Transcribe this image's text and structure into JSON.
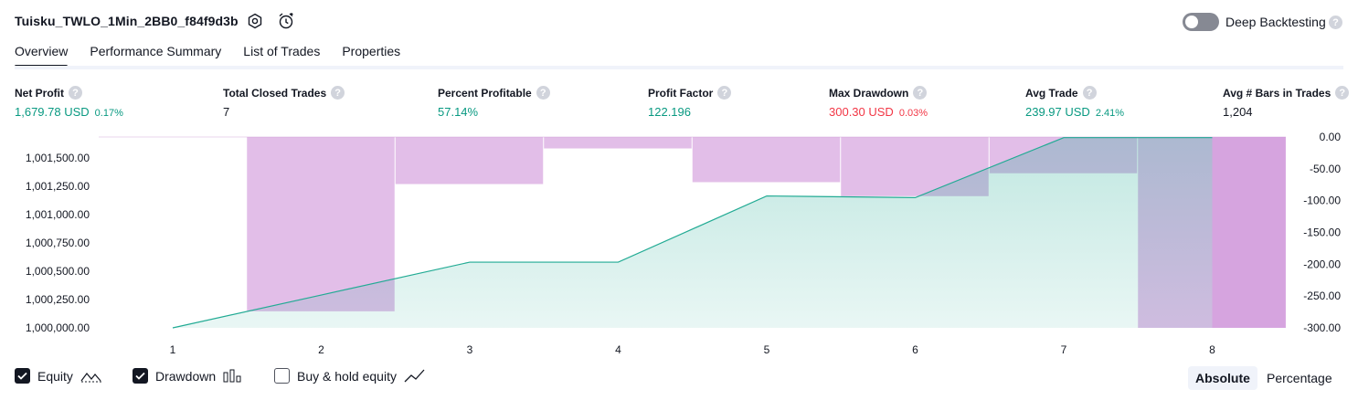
{
  "header": {
    "title": "Tuisku_TWLO_1Min_2BB0_f84f9d3b",
    "deep_backtesting_label": "Deep Backtesting",
    "deep_backtesting_on": false,
    "help_glyph": "?"
  },
  "tabs": [
    {
      "label": "Overview",
      "active": true
    },
    {
      "label": "Performance Summary",
      "active": false
    },
    {
      "label": "List of Trades",
      "active": false
    },
    {
      "label": "Properties",
      "active": false
    }
  ],
  "metrics": {
    "net_profit": {
      "label": "Net Profit",
      "value": "1,679.78 USD",
      "sub": "0.17%"
    },
    "total_closed_trades": {
      "label": "Total Closed Trades",
      "value": "7"
    },
    "percent_profitable": {
      "label": "Percent Profitable",
      "value": "57.14%"
    },
    "profit_factor": {
      "label": "Profit Factor",
      "value": "122.196"
    },
    "max_drawdown": {
      "label": "Max Drawdown",
      "value": "300.30 USD",
      "sub": "0.03%"
    },
    "avg_trade": {
      "label": "Avg Trade",
      "value": "239.97 USD",
      "sub": "2.41%"
    },
    "avg_bars": {
      "label": "Avg # Bars in Trades",
      "value": "1,204"
    }
  },
  "chart_data": {
    "type": "line+bar",
    "x_categories": [
      "1",
      "2",
      "3",
      "4",
      "5",
      "6",
      "7",
      "8"
    ],
    "left_axis": {
      "label": "",
      "ticks": [
        "1,000,000.00",
        "1,000,250.00",
        "1,000,500.00",
        "1,000,750.00",
        "1,001,000.00",
        "1,001,250.00",
        "1,001,500.00"
      ],
      "range": [
        1000000,
        1001680
      ]
    },
    "right_axis": {
      "label": "",
      "ticks": [
        "0.00",
        "-50.00",
        "-100.00",
        "-150.00",
        "-200.00",
        "-250.00",
        "-300.00"
      ],
      "range": [
        -300,
        0
      ]
    },
    "series": [
      {
        "name": "Equity",
        "type": "area",
        "color": "#22ab94",
        "values": [
          1000000,
          1000290,
          1000580,
          1000580,
          1001165,
          1001150,
          1001680,
          1001680
        ]
      },
      {
        "name": "Drawdown",
        "type": "bar",
        "color": "#ce93d8",
        "values": [
          0,
          -274,
          -74,
          -18,
          -71,
          -93,
          -57,
          -300
        ]
      }
    ],
    "drawdown_tail_value": -300
  },
  "legend": {
    "equity": {
      "label": "Equity",
      "checked": true
    },
    "drawdown": {
      "label": "Drawdown",
      "checked": true
    },
    "buy_hold": {
      "label": "Buy & hold equity",
      "checked": false
    }
  },
  "view_toggle": {
    "absolute": "Absolute",
    "percentage": "Percentage"
  },
  "colors": {
    "positive": "#089981",
    "negative": "#f23645",
    "drawdown": "#ce93d8",
    "equity": "#22ab94"
  }
}
